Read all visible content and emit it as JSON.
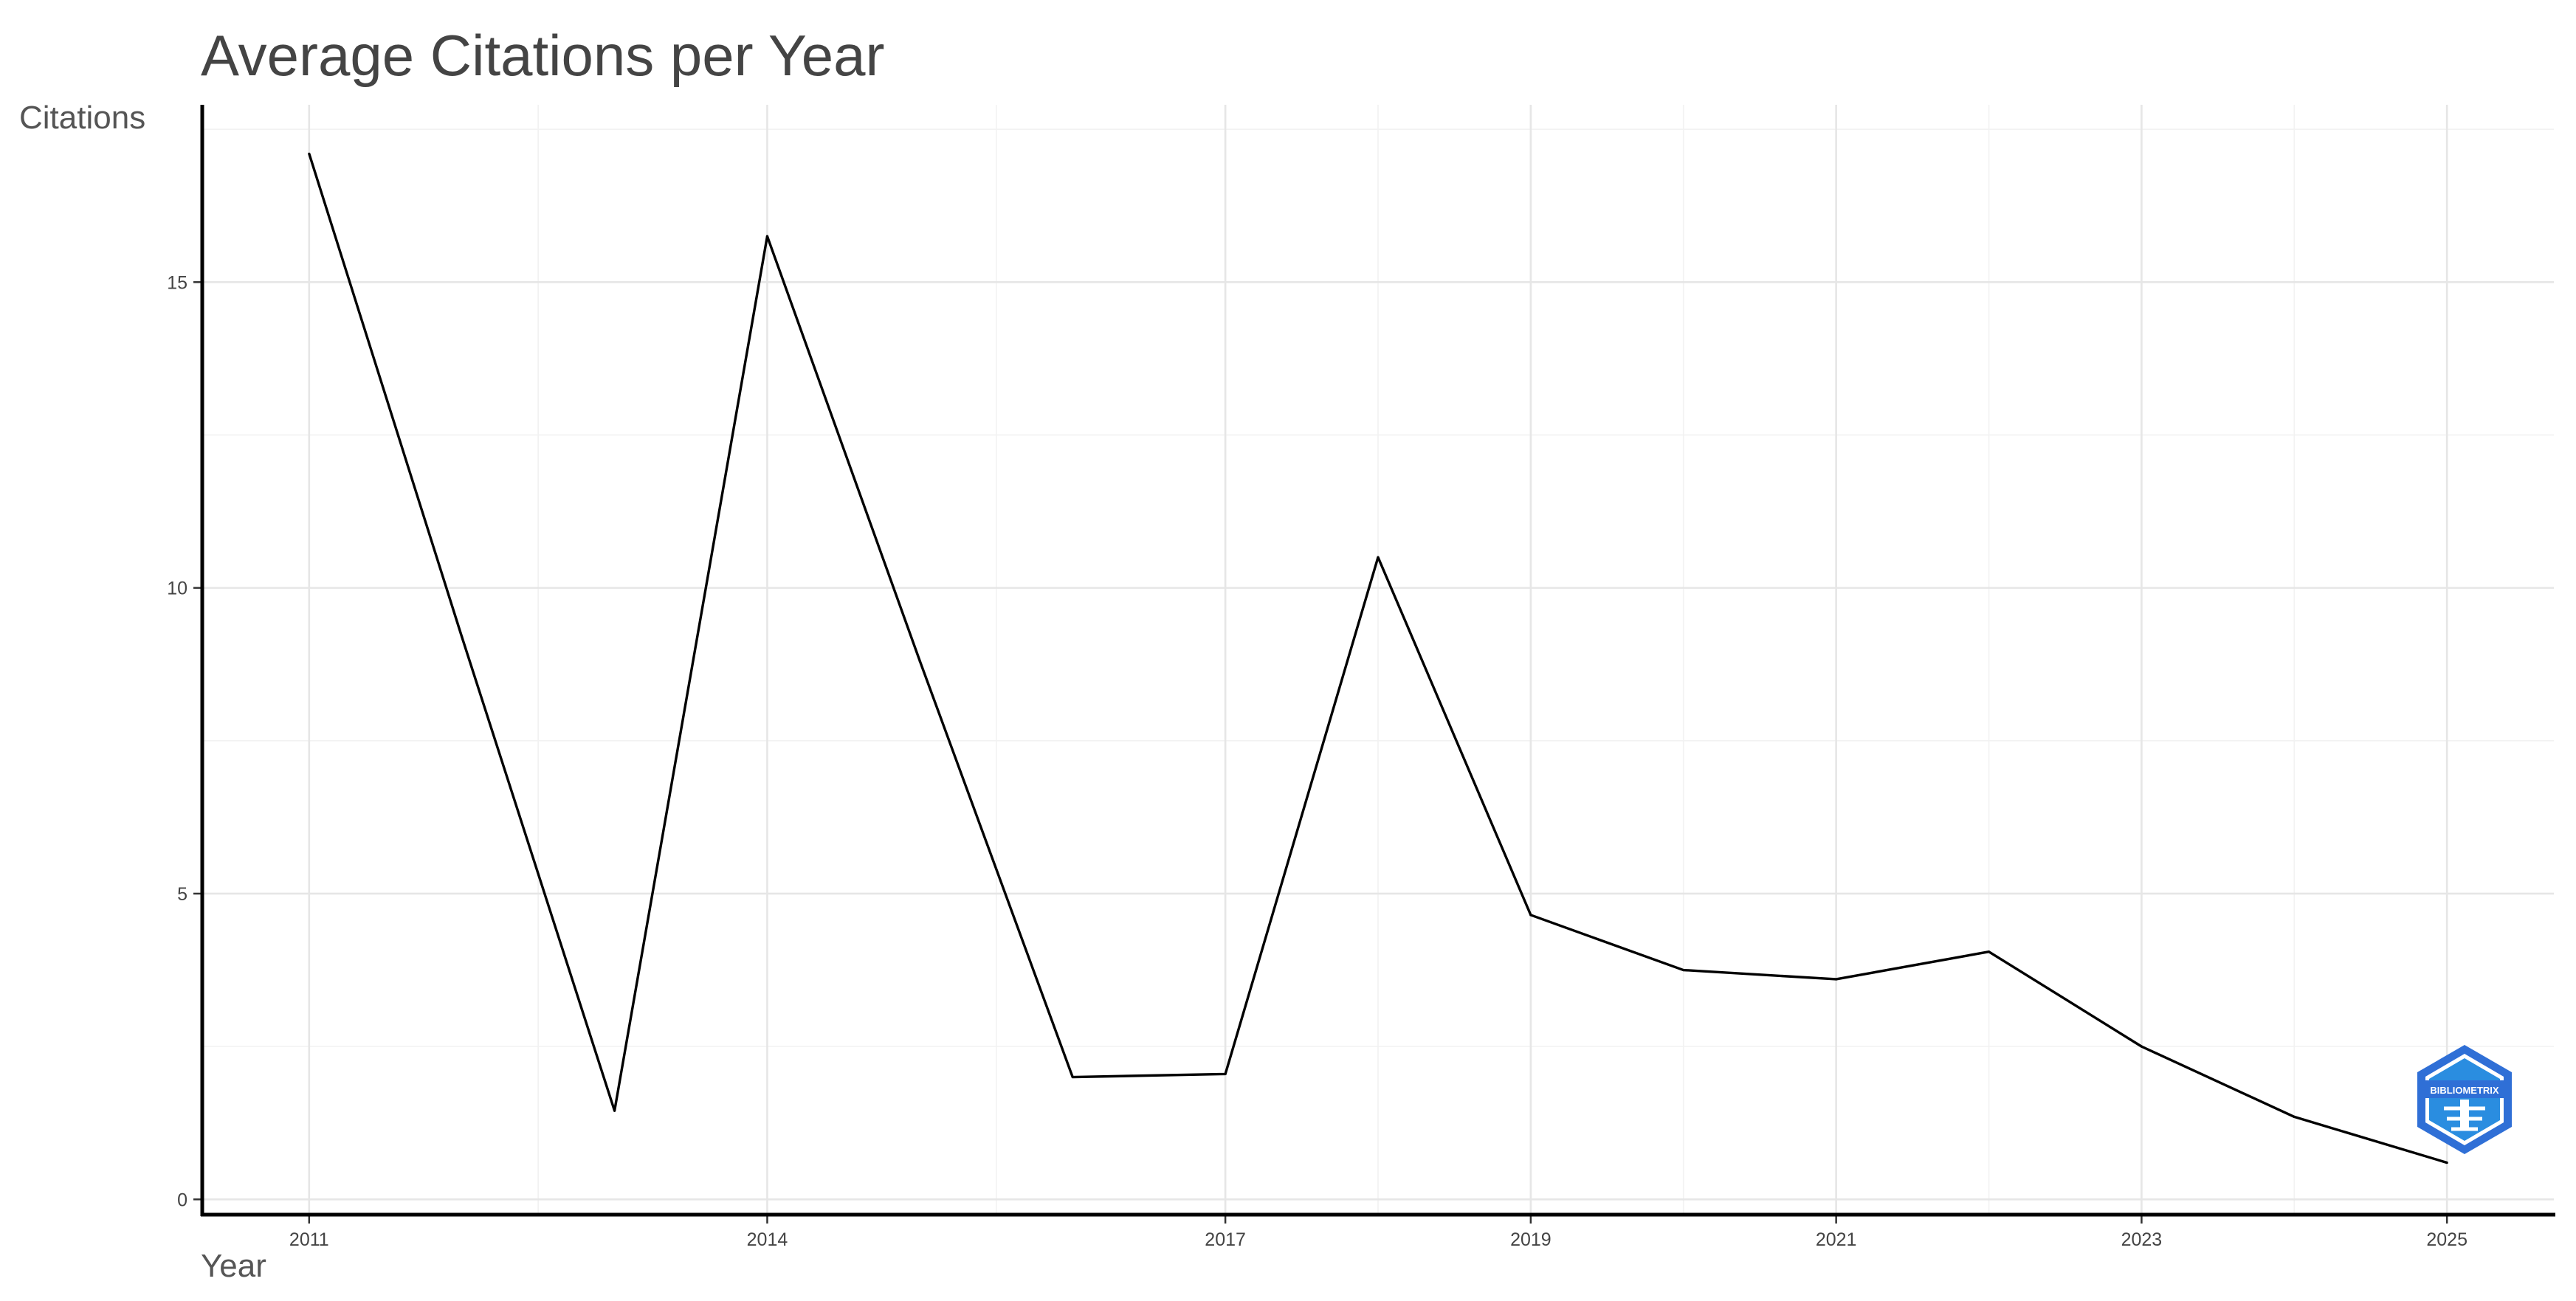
{
  "chart_data": {
    "type": "line",
    "title": "Average Citations per Year",
    "xlabel": "Year",
    "ylabel": "Citations",
    "x_ticks": [
      2011,
      2014,
      2017,
      2019,
      2021,
      2023,
      2025
    ],
    "y_ticks": [
      0,
      5,
      10,
      15
    ],
    "xlim": [
      2010.3,
      2025.7
    ],
    "ylim": [
      -0.25,
      17.9
    ],
    "grid": true,
    "legend": "none",
    "series": [
      {
        "x": [
          2011,
          2012,
          2013,
          2014,
          2015,
          2016,
          2017,
          2018,
          2019,
          2020,
          2021,
          2022,
          2023,
          2024,
          2025
        ],
        "y": [
          17.1,
          9.2,
          1.45,
          15.75,
          8.8,
          2.0,
          2.05,
          10.5,
          4.65,
          3.75,
          3.6,
          4.05,
          2.5,
          1.35,
          0.6
        ]
      }
    ]
  },
  "logo": {
    "text": "BIBLIOMETRIX",
    "color": "#2f6fd6"
  }
}
